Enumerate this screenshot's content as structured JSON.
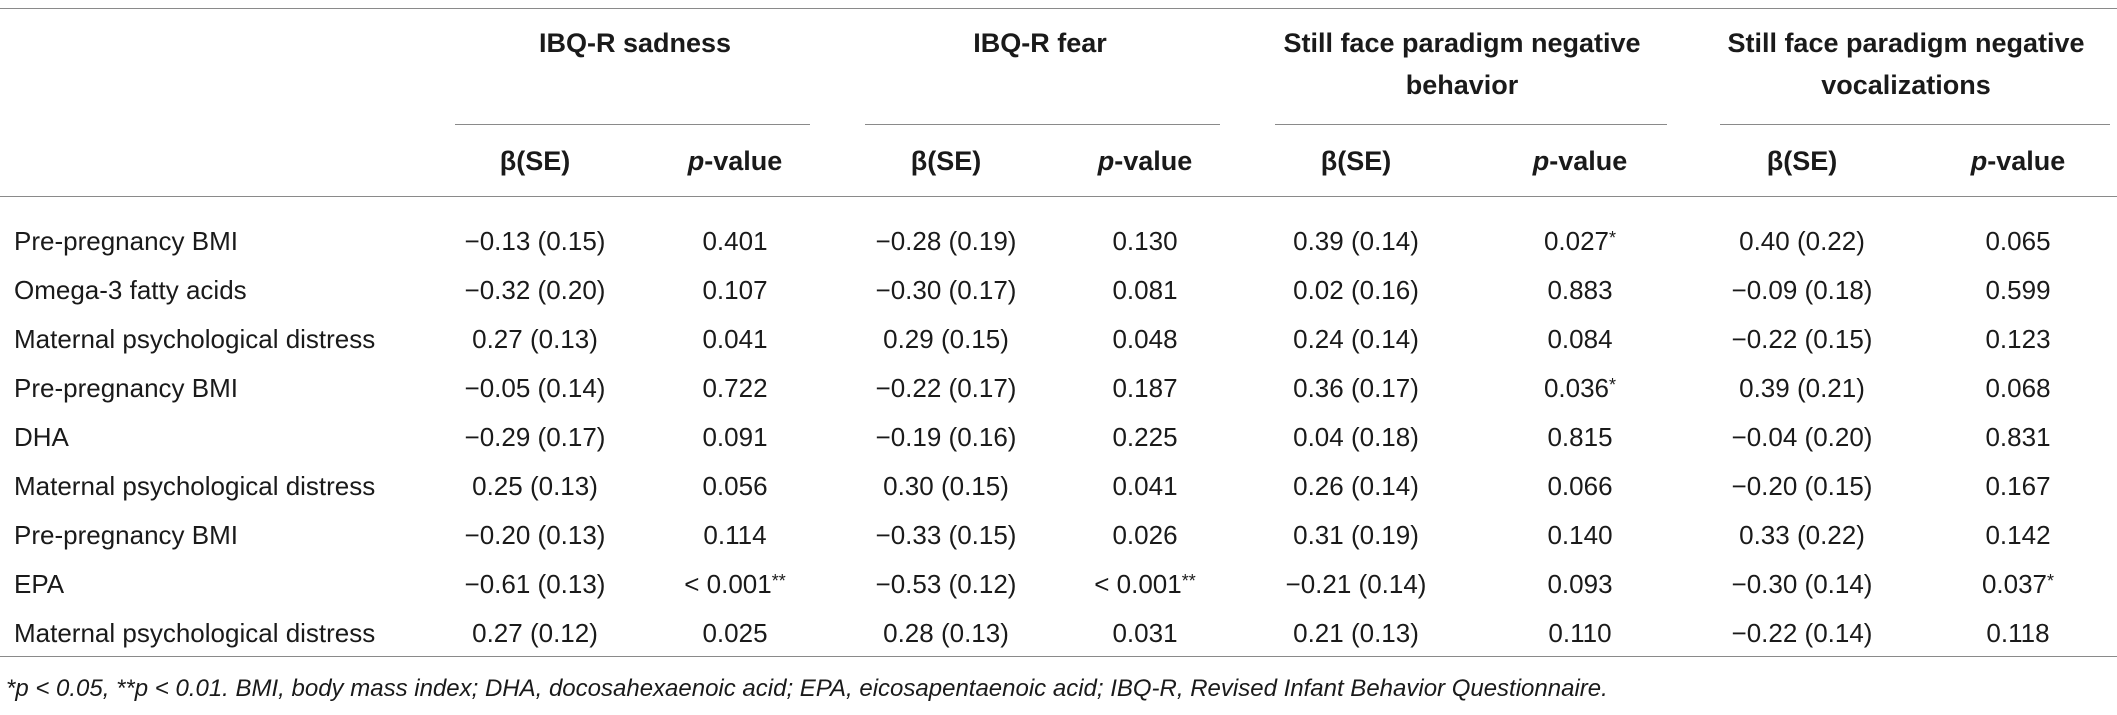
{
  "groups": [
    {
      "label": "IBQ-R sadness"
    },
    {
      "label": "IBQ-R fear"
    },
    {
      "label": "Still face paradigm negative behavior"
    },
    {
      "label": "Still face paradigm negative vocalizations"
    }
  ],
  "subheaders": {
    "beta": "β(SE)",
    "p_prefix": "p",
    "p_suffix": "-value"
  },
  "rows": [
    {
      "label": "Pre-pregnancy BMI",
      "cells": [
        {
          "b": "−0.13 (0.15)",
          "p": "0.401",
          "s": ""
        },
        {
          "b": "−0.28 (0.19)",
          "p": "0.130",
          "s": ""
        },
        {
          "b": "0.39 (0.14)",
          "p": "0.027",
          "s": "*"
        },
        {
          "b": "0.40 (0.22)",
          "p": "0.065",
          "s": ""
        }
      ]
    },
    {
      "label": "Omega-3 fatty acids",
      "cells": [
        {
          "b": "−0.32 (0.20)",
          "p": "0.107",
          "s": ""
        },
        {
          "b": "−0.30 (0.17)",
          "p": "0.081",
          "s": ""
        },
        {
          "b": "0.02 (0.16)",
          "p": "0.883",
          "s": ""
        },
        {
          "b": "−0.09 (0.18)",
          "p": "0.599",
          "s": ""
        }
      ]
    },
    {
      "label": "Maternal psychological distress",
      "cells": [
        {
          "b": "0.27 (0.13)",
          "p": "0.041",
          "s": ""
        },
        {
          "b": "0.29 (0.15)",
          "p": "0.048",
          "s": ""
        },
        {
          "b": "0.24 (0.14)",
          "p": "0.084",
          "s": ""
        },
        {
          "b": "−0.22 (0.15)",
          "p": "0.123",
          "s": ""
        }
      ]
    },
    {
      "label": "Pre-pregnancy BMI",
      "cells": [
        {
          "b": "−0.05 (0.14)",
          "p": "0.722",
          "s": ""
        },
        {
          "b": "−0.22 (0.17)",
          "p": "0.187",
          "s": ""
        },
        {
          "b": "0.36 (0.17)",
          "p": "0.036",
          "s": "*"
        },
        {
          "b": "0.39 (0.21)",
          "p": "0.068",
          "s": ""
        }
      ]
    },
    {
      "label": "DHA",
      "cells": [
        {
          "b": "−0.29 (0.17)",
          "p": "0.091",
          "s": ""
        },
        {
          "b": "−0.19 (0.16)",
          "p": "0.225",
          "s": ""
        },
        {
          "b": "0.04 (0.18)",
          "p": "0.815",
          "s": ""
        },
        {
          "b": "−0.04 (0.20)",
          "p": "0.831",
          "s": ""
        }
      ]
    },
    {
      "label": "Maternal psychological distress",
      "cells": [
        {
          "b": "0.25 (0.13)",
          "p": "0.056",
          "s": ""
        },
        {
          "b": "0.30 (0.15)",
          "p": "0.041",
          "s": ""
        },
        {
          "b": "0.26 (0.14)",
          "p": "0.066",
          "s": ""
        },
        {
          "b": "−0.20 (0.15)",
          "p": "0.167",
          "s": ""
        }
      ]
    },
    {
      "label": "Pre-pregnancy BMI",
      "cells": [
        {
          "b": "−0.20 (0.13)",
          "p": "0.114",
          "s": ""
        },
        {
          "b": "−0.33 (0.15)",
          "p": "0.026",
          "s": ""
        },
        {
          "b": "0.31 (0.19)",
          "p": "0.140",
          "s": ""
        },
        {
          "b": "0.33 (0.22)",
          "p": "0.142",
          "s": ""
        }
      ]
    },
    {
      "label": "EPA",
      "cells": [
        {
          "b": "−0.61 (0.13)",
          "p": "< 0.001",
          "s": "**"
        },
        {
          "b": "−0.53 (0.12)",
          "p": "< 0.001",
          "s": "**"
        },
        {
          "b": "−0.21 (0.14)",
          "p": "0.093",
          "s": ""
        },
        {
          "b": "−0.30 (0.14)",
          "p": "0.037",
          "s": "*"
        }
      ]
    },
    {
      "label": "Maternal psychological distress",
      "cells": [
        {
          "b": "0.27 (0.12)",
          "p": "0.025",
          "s": ""
        },
        {
          "b": "0.28 (0.13)",
          "p": "0.031",
          "s": ""
        },
        {
          "b": "0.21 (0.13)",
          "p": "0.110",
          "s": ""
        },
        {
          "b": "−0.22 (0.14)",
          "p": "0.118",
          "s": ""
        }
      ]
    }
  ],
  "footnote": "*p < 0.05, **p < 0.01. BMI, body mass index; DHA, docosahexaenoic acid; EPA, eicosapentaenoic acid; IBQ-R, Revised Infant Behavior Questionnaire."
}
